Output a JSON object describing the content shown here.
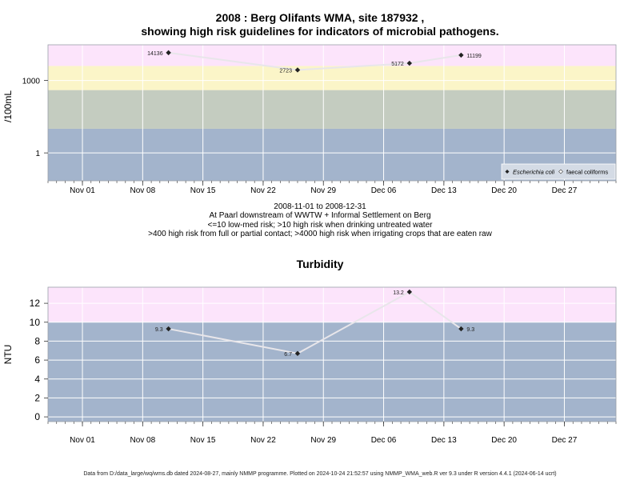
{
  "header": {
    "title_line1": "2008 : Berg Olifants WMA, site 187932 ,",
    "title_line2": "showing high risk guidelines for indicators of microbial pathogens."
  },
  "subtitle": {
    "line1": "2008-11-01 to 2008-12-31",
    "line2": "At Paarl downstream of WWTW + Informal Settlement on Berg",
    "line3": "<=10 low-med risk; >10 high risk when drinking untreated water",
    "line4": ">400 high risk from full or partial contact; >4000 high risk when irrigating crops that are eaten raw"
  },
  "footer": {
    "text": "Data from D:/data_large/wq/wms.db dated 2024-08-27, mainly NMMP programme. Plotted on 2024-10-24 21:52:57 using NMMP_WMA_web.R ver 9.3 under R version 4.4.1 (2024-06-14 ucrt)"
  },
  "colors": {
    "band_blue": "#a3b4cc",
    "band_green": "#c4ccc0",
    "band_yellow": "#fbf5c8",
    "band_pink": "#fce4fb",
    "grid": "#ffffff",
    "line": "#e8e6ea",
    "point": "#222222"
  },
  "chart_data": [
    {
      "type": "line",
      "title": "",
      "ylabel": "/100mL",
      "y_scale": "log10",
      "ylim": [
        0.07,
        30000
      ],
      "xlim": [
        "2008-10-28",
        "2009-01-02"
      ],
      "x_ticks": [
        "2008-11-01",
        "2008-11-08",
        "2008-11-15",
        "2008-11-22",
        "2008-11-29",
        "2008-12-06",
        "2008-12-13",
        "2008-12-20",
        "2008-12-27"
      ],
      "x_tick_labels": [
        "Nov 01",
        "Nov 08",
        "Nov 15",
        "Nov 22",
        "Nov 29",
        "Dec 06",
        "Dec 13",
        "Dec 20",
        "Dec 27"
      ],
      "y_ticks": [
        1,
        1000
      ],
      "y_tick_labels": [
        "1",
        "1000"
      ],
      "bands": [
        {
          "from": 0.07,
          "to": 10,
          "color": "band_blue"
        },
        {
          "from": 10,
          "to": 400,
          "color": "band_green"
        },
        {
          "from": 400,
          "to": 4000,
          "color": "band_yellow"
        },
        {
          "from": 4000,
          "to": 30000,
          "color": "band_pink"
        }
      ],
      "series": [
        {
          "name": "Escherichia coli",
          "x": [
            "2008-11-11",
            "2008-11-26",
            "2008-12-09",
            "2008-12-15"
          ],
          "y": [
            14136,
            2723,
            5172,
            11199
          ],
          "labels": [
            "14136",
            "2723",
            "5172",
            "11199"
          ],
          "label_side": [
            "left",
            "left",
            "left",
            "right"
          ]
        }
      ],
      "legend": {
        "position": "bottom-right",
        "entries": [
          "Escherichia coli",
          "faecal coliforms"
        ]
      },
      "grid": true
    },
    {
      "type": "line",
      "title": "Turbidity",
      "ylabel": "NTU",
      "y_scale": "linear",
      "ylim": [
        -0.5,
        13.7
      ],
      "xlim": [
        "2008-10-28",
        "2009-01-02"
      ],
      "x_ticks": [
        "2008-11-01",
        "2008-11-08",
        "2008-11-15",
        "2008-11-22",
        "2008-11-29",
        "2008-12-06",
        "2008-12-13",
        "2008-12-20",
        "2008-12-27"
      ],
      "x_tick_labels": [
        "Nov 01",
        "Nov 08",
        "Nov 15",
        "Nov 22",
        "Nov 29",
        "Dec 06",
        "Dec 13",
        "Dec 20",
        "Dec 27"
      ],
      "y_ticks": [
        0,
        2,
        4,
        6,
        8,
        10,
        12
      ],
      "y_tick_labels": [
        "0",
        "2",
        "4",
        "6",
        "8",
        "10",
        "12"
      ],
      "bands": [
        {
          "from": -0.5,
          "to": 10,
          "color": "band_blue"
        },
        {
          "from": 10,
          "to": 13.7,
          "color": "band_pink"
        }
      ],
      "series": [
        {
          "name": "",
          "x": [
            "2008-11-11",
            "2008-11-26",
            "2008-12-09",
            "2008-12-15"
          ],
          "y": [
            9.3,
            6.7,
            13.2,
            9.3
          ],
          "labels": [
            "9.3",
            "6.7",
            "13.2",
            "9.3"
          ],
          "label_side": [
            "left",
            "left",
            "left",
            "right"
          ]
        }
      ],
      "grid": true
    }
  ]
}
